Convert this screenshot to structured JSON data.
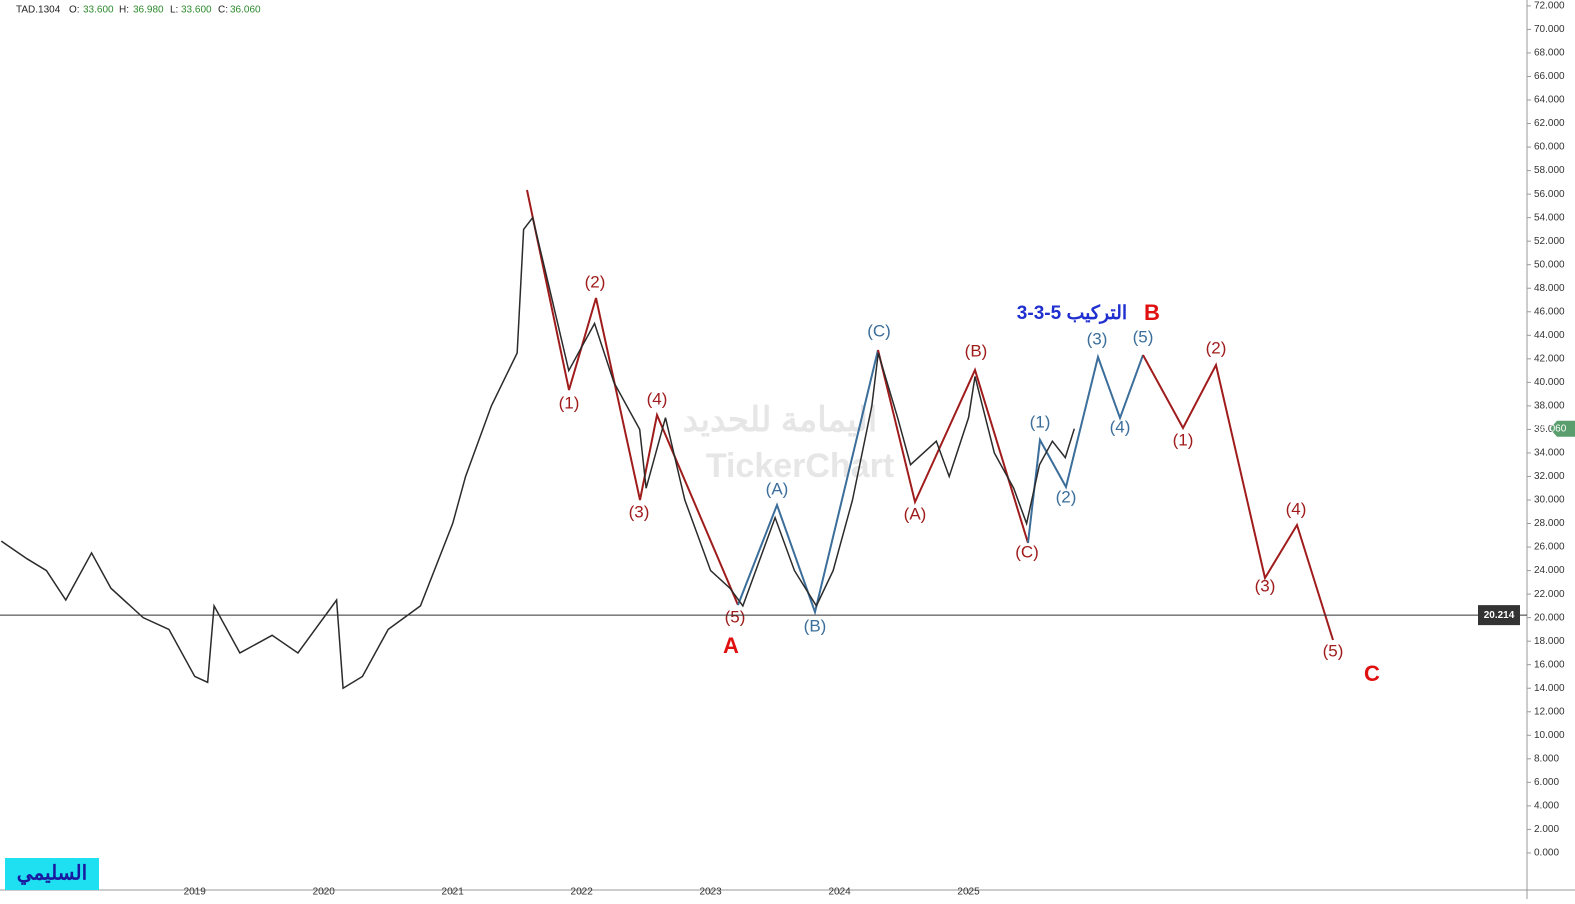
{
  "header": {
    "symbol": "TAD.1304",
    "open_label": "O:",
    "open": "33.600",
    "high_label": "H:",
    "high": "36.980",
    "low_label": "L:",
    "low": "33.600",
    "close_label": "C:",
    "close": "36.060"
  },
  "chart_data": {
    "type": "line",
    "color": "#2b2b2b",
    "x": [
      2017.5,
      2017.7,
      2017.85,
      2018.0,
      2018.2,
      2018.35,
      2018.6,
      2018.8,
      2019.0,
      2019.1,
      2019.15,
      2019.35,
      2019.6,
      2019.8,
      2020.1,
      2020.15,
      2020.3,
      2020.5,
      2020.75,
      2021.0,
      2021.1,
      2021.3,
      2021.5,
      2021.55,
      2021.62,
      2021.75,
      2021.9,
      2022.1,
      2022.25,
      2022.45,
      2022.5,
      2022.65,
      2022.8,
      2023.0,
      2023.15,
      2023.25,
      2023.5,
      2023.65,
      2023.82,
      2023.95,
      2024.1,
      2024.25,
      2024.3,
      2024.45,
      2024.55,
      2024.75,
      2024.85,
      2025.0,
      2025.05,
      2025.2,
      2025.35,
      2025.45,
      2025.55,
      2025.65,
      2025.75,
      2025.82
    ],
    "values": [
      26.5,
      25,
      24,
      21.5,
      25.5,
      22.5,
      20,
      19,
      15,
      14.5,
      21,
      17,
      18.5,
      17,
      21.5,
      14,
      15,
      19,
      21,
      28,
      32,
      38,
      42.5,
      53,
      54,
      48,
      41,
      45,
      40,
      36,
      31,
      37,
      30,
      24,
      22.5,
      21,
      28.5,
      24,
      21,
      24,
      30,
      38,
      42.5,
      37,
      33,
      35,
      32,
      37,
      40.5,
      34,
      31,
      28,
      33,
      35,
      33.6,
      36.06
    ],
    "xlim": [
      2017.49,
      2029.33
    ],
    "ylim": [
      -3.15,
      72.5
    ],
    "xticks": [
      2019,
      2020,
      2021,
      2022,
      2023,
      2024,
      2025
    ],
    "yticks": [
      {
        "value": 0,
        "label": "0.000"
      },
      {
        "value": 2,
        "label": "2.000"
      },
      {
        "value": 4,
        "label": "4.000"
      },
      {
        "value": 6,
        "label": "6.000"
      },
      {
        "value": 8,
        "label": "8.000"
      },
      {
        "value": 10,
        "label": "10.000"
      },
      {
        "value": 12,
        "label": "12.000"
      },
      {
        "value": 14,
        "label": "14.000"
      },
      {
        "value": 16,
        "label": "16.000"
      },
      {
        "value": 18,
        "label": "18.000"
      },
      {
        "value": 20,
        "label": "20.000"
      },
      {
        "value": 22,
        "label": "22.000"
      },
      {
        "value": 24,
        "label": "24.000"
      },
      {
        "value": 26,
        "label": "26.000"
      },
      {
        "value": 28,
        "label": "28.000"
      },
      {
        "value": 30,
        "label": "30.000"
      },
      {
        "value": 32,
        "label": "32.000"
      },
      {
        "value": 34,
        "label": "34.000"
      },
      {
        "value": 36,
        "label": "36.000"
      },
      {
        "value": 38,
        "label": "38.000"
      },
      {
        "value": 40,
        "label": "40.000"
      },
      {
        "value": 42,
        "label": "42.000"
      },
      {
        "value": 44,
        "label": "44.000"
      },
      {
        "value": 46,
        "label": "46.000"
      },
      {
        "value": 48,
        "label": "48.000"
      },
      {
        "value": 50,
        "label": "50.000"
      },
      {
        "value": 52,
        "label": "52.000"
      },
      {
        "value": 54,
        "label": "54.000"
      },
      {
        "value": 56,
        "label": "56.000"
      },
      {
        "value": 58,
        "label": "58.000"
      },
      {
        "value": 60,
        "label": "60.000"
      },
      {
        "value": 62,
        "label": "62.000"
      },
      {
        "value": 64,
        "label": "64.000"
      },
      {
        "value": 66,
        "label": "66.000"
      },
      {
        "value": 68,
        "label": "68.000"
      },
      {
        "value": 70,
        "label": "70.000"
      },
      {
        "value": 72,
        "label": "72.000"
      }
    ],
    "last_price": {
      "value": 36.06,
      "label": "36.060"
    },
    "hline": {
      "value": 20.214,
      "label": "20.214"
    },
    "title_letter": "B",
    "title": "التركيب 5-3-3",
    "wave_labels": [
      "(1)",
      "(2)",
      "(3)",
      "(4)",
      "(5)",
      "A",
      "(A)",
      "(B)",
      "(C)",
      "(A)",
      "(B)",
      "(C)",
      "(1)",
      "(2)",
      "(3)",
      "(4)",
      "(5)",
      "(1)",
      "(2)",
      "(3)",
      "(4)",
      "(5)",
      "C"
    ],
    "watermark": [
      "اليمامة للحديد",
      "TickerChart"
    ]
  },
  "logo": "السليمي"
}
